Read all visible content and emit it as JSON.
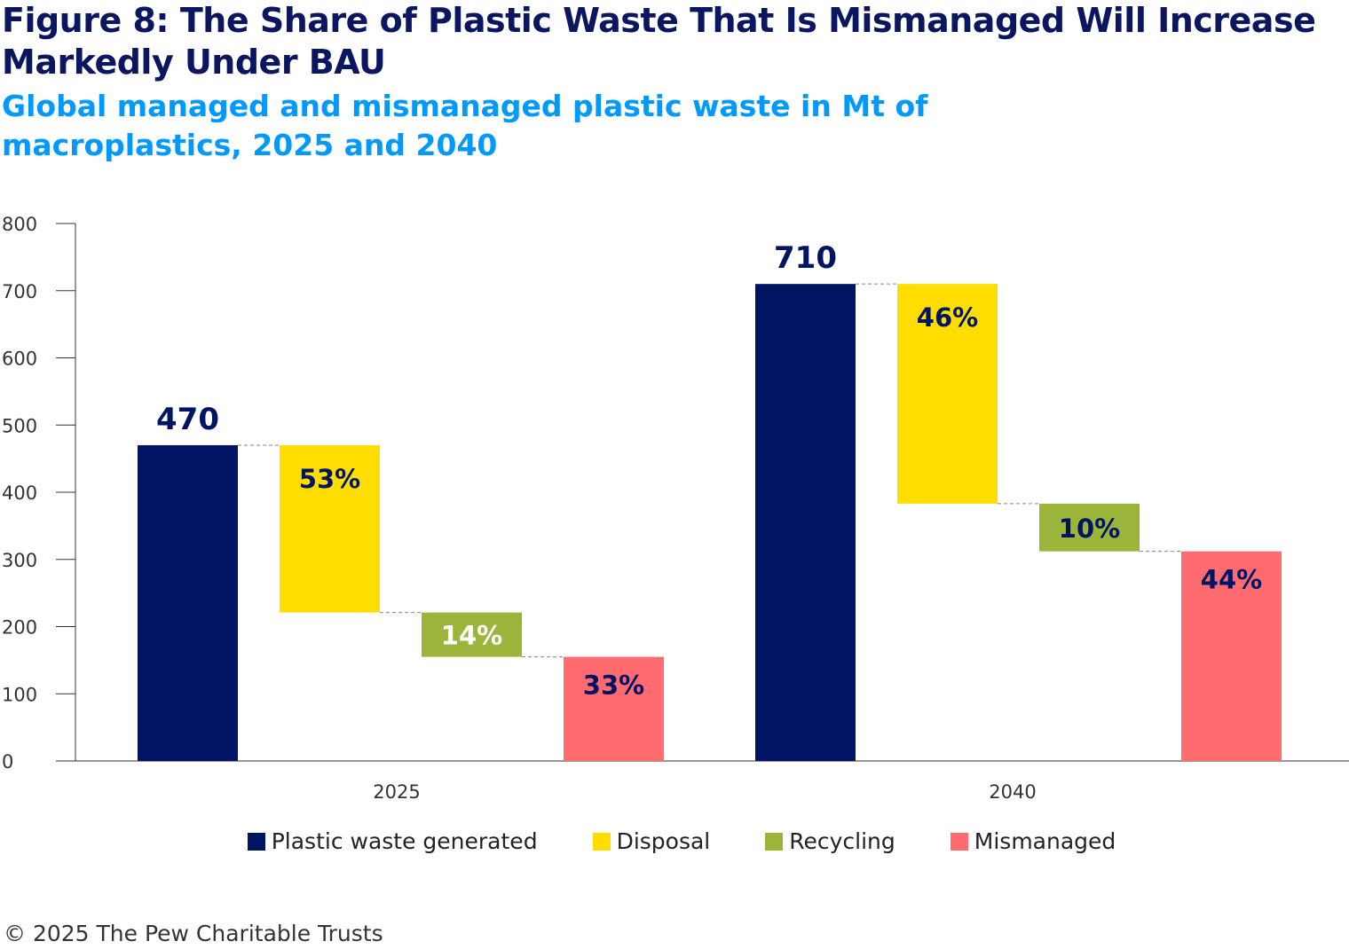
{
  "title": "Figure 8: The Share of Plastic Waste That Is Mismanaged Will Increase Markedly Under BAU",
  "subtitle": "Global managed and mismanaged plastic waste in Mt of macroplastics, 2025 and 2040",
  "footer": "© 2025 The Pew Charitable Trusts",
  "chart_data": {
    "type": "bar",
    "subtype": "waterfall",
    "categories": [
      "2025",
      "2040"
    ],
    "ylim": [
      0,
      800
    ],
    "yticks": [
      "0",
      "100",
      "200",
      "300",
      "400",
      "500",
      "600",
      "700",
      "800"
    ],
    "grid": false,
    "legend_position": "bottom",
    "series": [
      {
        "name": "Plastic waste generated",
        "color": "#001464",
        "values": [
          470,
          710
        ],
        "labels": [
          "470",
          "710"
        ],
        "label_color": "#001464"
      },
      {
        "name": "Disposal",
        "color": "#FFDD00",
        "values": [
          249,
          327
        ],
        "labels": [
          "53%",
          "46%"
        ],
        "label_color": "#001464"
      },
      {
        "name": "Recycling",
        "color": "#9BB53A",
        "values": [
          66,
          71
        ],
        "labels": [
          "14%",
          "10%"
        ],
        "label_color": [
          "#ffffff",
          "#001464"
        ]
      },
      {
        "name": "Mismanaged",
        "color": "#FF6B6E",
        "values": [
          155,
          312
        ],
        "labels": [
          "33%",
          "44%"
        ],
        "label_color": "#001464"
      }
    ]
  }
}
